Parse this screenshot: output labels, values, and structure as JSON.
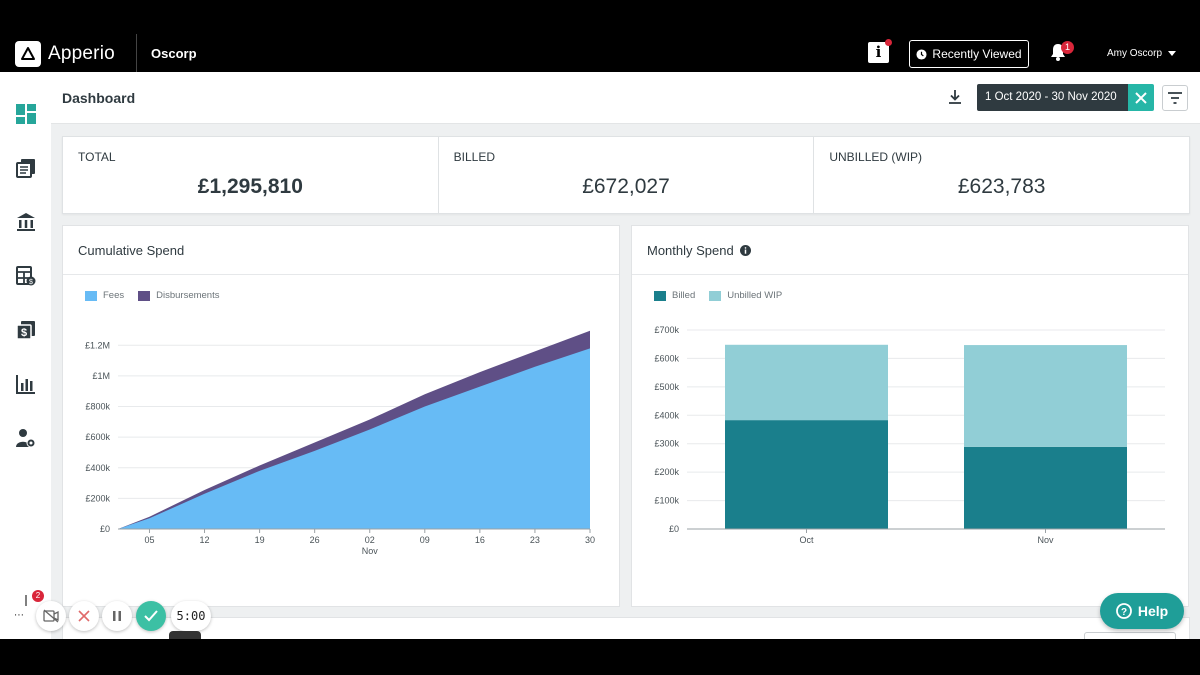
{
  "app": {
    "name": "Apperio",
    "org": "Oscorp"
  },
  "topbar": {
    "recently_viewed": "Recently Viewed",
    "notifications_count": "1",
    "user": "Amy Oscorp"
  },
  "page": {
    "title": "Dashboard",
    "date_range": "1 Oct 2020 - 30 Nov 2020"
  },
  "sidebar": {
    "items": [
      "dashboard-icon",
      "matters-icon",
      "firms-icon",
      "budgets-icon",
      "invoices-icon",
      "reports-icon",
      "user-settings-icon"
    ]
  },
  "totals": [
    {
      "label": "TOTAL",
      "value": "£1,295,810"
    },
    {
      "label": "BILLED",
      "value": "£672,027"
    },
    {
      "label": "UNBILLED (WIP)",
      "value": "£623,783"
    }
  ],
  "cumulative": {
    "title": "Cumulative Spend",
    "legend": [
      "Fees",
      "Disbursements"
    ],
    "colors": {
      "fees": "#67bbf5",
      "disbursements": "#5f4f86"
    }
  },
  "monthly": {
    "title": "Monthly Spend",
    "legend": [
      "Billed",
      "Unbilled WIP"
    ],
    "colors": {
      "billed": "#1a7f8c",
      "unbilled": "#91ced6"
    }
  },
  "chart_data": [
    {
      "type": "area",
      "title": "Cumulative Spend",
      "x_ticks": [
        "05",
        "12",
        "19",
        "26",
        "02",
        "09",
        "16",
        "23",
        "30"
      ],
      "x_sublabel": "Nov",
      "y_ticks": [
        "£0",
        "£200k",
        "£400k",
        "£600k",
        "£800k",
        "£1M",
        "£1.2M"
      ],
      "ylim": [
        0,
        1300000
      ],
      "x": [
        "2020-10-01",
        "2020-10-05",
        "2020-10-12",
        "2020-10-19",
        "2020-10-26",
        "2020-11-02",
        "2020-11-09",
        "2020-11-16",
        "2020-11-23",
        "2020-11-30"
      ],
      "series": [
        {
          "name": "Fees",
          "values": [
            0,
            70000,
            230000,
            380000,
            510000,
            650000,
            800000,
            930000,
            1060000,
            1180000
          ]
        },
        {
          "name": "Disbursements",
          "values": [
            0,
            10000,
            25000,
            35000,
            55000,
            65000,
            80000,
            95000,
            100000,
            115000
          ]
        }
      ]
    },
    {
      "type": "bar",
      "title": "Monthly Spend",
      "categories": [
        "Oct",
        "Nov"
      ],
      "y_ticks": [
        "£0",
        "£100k",
        "£200k",
        "£300k",
        "£400k",
        "£500k",
        "£600k",
        "£700k"
      ],
      "ylim": [
        0,
        700000
      ],
      "series": [
        {
          "name": "Billed",
          "values": [
            383000,
            289000
          ]
        },
        {
          "name": "Unbilled WIP",
          "values": [
            265000,
            358000
          ]
        }
      ]
    }
  ],
  "help": "Help",
  "recorder": {
    "timer": "5:00",
    "gift_badge": "2"
  }
}
